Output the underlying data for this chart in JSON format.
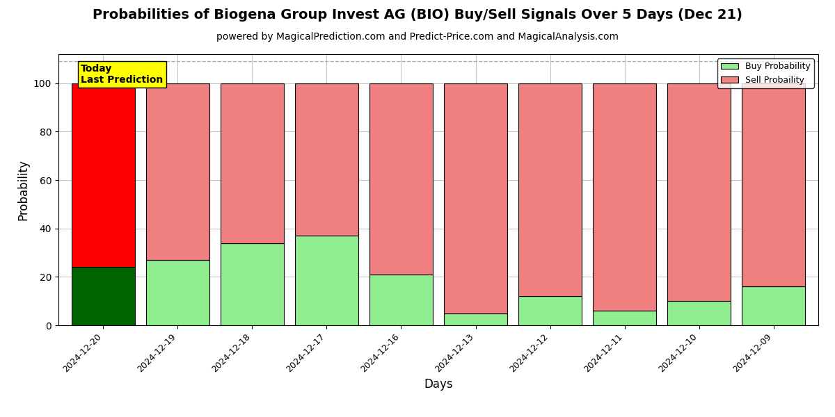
{
  "title": "Probabilities of Biogena Group Invest AG (BIO) Buy/Sell Signals Over 5 Days (Dec 21)",
  "subtitle": "powered by MagicalPrediction.com and Predict-Price.com and MagicalAnalysis.com",
  "xlabel": "Days",
  "ylabel": "Probability",
  "dates": [
    "2024-12-20",
    "2024-12-19",
    "2024-12-18",
    "2024-12-17",
    "2024-12-16",
    "2024-12-13",
    "2024-12-12",
    "2024-12-11",
    "2024-12-10",
    "2024-12-09"
  ],
  "buy_values": [
    24,
    27,
    34,
    37,
    21,
    5,
    12,
    6,
    10,
    16
  ],
  "sell_values": [
    76,
    73,
    66,
    63,
    79,
    95,
    88,
    94,
    90,
    84
  ],
  "today_buy_color": "#006400",
  "today_sell_color": "#FF0000",
  "other_buy_color": "#90EE90",
  "other_sell_color": "#F08080",
  "today_label_bg": "#FFFF00",
  "today_label_text": "Today\nLast Prediction",
  "legend_buy_label": "Buy Probability",
  "legend_sell_label": "Sell Probaility",
  "ylim": [
    0,
    112
  ],
  "dashed_line_y": 109,
  "bar_width": 0.85,
  "edgecolor": "#000000",
  "background_color": "#ffffff",
  "grid_color": "#aaaaaa",
  "title_fontsize": 14,
  "subtitle_fontsize": 10,
  "axis_label_fontsize": 12
}
